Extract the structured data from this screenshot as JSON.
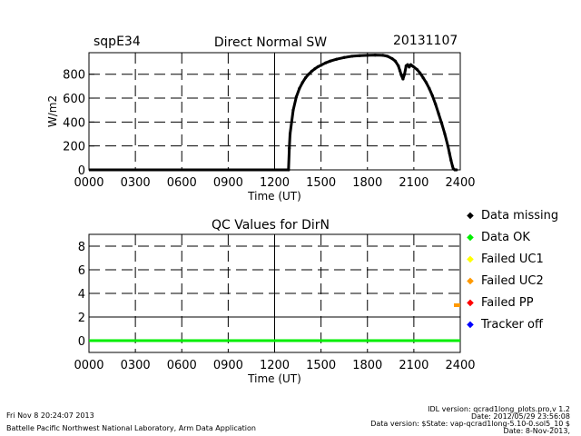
{
  "header": {
    "station": "sqpE34",
    "title": "Direct Normal SW",
    "date": "20131107"
  },
  "qc_title": "QC Values for DirN",
  "legend": [
    {
      "label": "Data missing",
      "color": "#000000"
    },
    {
      "label": "Data OK",
      "color": "#00ee00"
    },
    {
      "label": "Failed UC1",
      "color": "#ffff00"
    },
    {
      "label": "Failed UC2",
      "color": "#ff9900"
    },
    {
      "label": "Failed PP",
      "color": "#ff0000"
    },
    {
      "label": "Tracker off",
      "color": "#0000ff"
    }
  ],
  "footer": {
    "left_line1": "Fri Nov  8 20:24:07 2013",
    "left_line2": "Battelle Pacific Northwest National Laboratory, Arm Data Application",
    "right_line1": "IDL version: qcrad1long_plots.pro,v 1.2",
    "right_line2": "Date: 2012/05/29 23:56:08",
    "right_line3": "Data version: $State: vap-qcrad1long-5.10-0.sol5_10 $",
    "right_line4": "Date: 8-Nov-2013,"
  },
  "chart_data": [
    {
      "type": "line",
      "title": "Direct Normal SW",
      "xlabel": "Time (UT)",
      "ylabel": "W/m2",
      "xlim": [
        0,
        2400
      ],
      "ylim": [
        0,
        980
      ],
      "xticks": [
        "0000",
        "0300",
        "0600",
        "0900",
        "1200",
        "1500",
        "1800",
        "2100",
        "2400"
      ],
      "yticks": [
        "0",
        "200",
        "400",
        "600",
        "800"
      ],
      "grid": true,
      "series": [
        {
          "color": "#000000",
          "x": [
            0,
            90,
            1290,
            1295,
            1300,
            1320,
            1340,
            1360,
            1380,
            1400,
            1420,
            1440,
            1460,
            1480,
            1500,
            1530,
            1560,
            1600,
            1650,
            1700,
            1750,
            1800,
            1850,
            1900,
            1930,
            1960,
            1980,
            2000,
            2010,
            2020,
            2030,
            2040,
            2050,
            2060,
            2070,
            2080,
            2090,
            2100,
            2120,
            2140,
            2160,
            2180,
            2200,
            2220,
            2240,
            2260,
            2280,
            2300,
            2320,
            2330,
            2340,
            2350,
            2355,
            2365,
            2375
          ],
          "y": [
            0,
            0,
            0,
            180,
            300,
            500,
            610,
            680,
            730,
            770,
            800,
            825,
            845,
            862,
            875,
            895,
            910,
            925,
            940,
            950,
            955,
            958,
            960,
            958,
            950,
            930,
            910,
            870,
            830,
            790,
            760,
            800,
            870,
            880,
            860,
            880,
            870,
            860,
            840,
            810,
            770,
            730,
            680,
            620,
            550,
            470,
            390,
            300,
            200,
            140,
            80,
            30,
            10,
            0,
            0
          ]
        }
      ]
    },
    {
      "type": "line",
      "title": "QC Values for DirN",
      "xlabel": "Time (UT)",
      "ylabel": "",
      "xlim": [
        0,
        2400
      ],
      "ylim": [
        -1,
        9
      ],
      "xticks": [
        "0000",
        "0300",
        "0600",
        "0900",
        "1200",
        "1500",
        "1800",
        "2100",
        "2400"
      ],
      "yticks": [
        "0",
        "2",
        "4",
        "6",
        "8"
      ],
      "grid": true,
      "series": [
        {
          "color": "#00ee00",
          "x": [
            0,
            2400
          ],
          "y": [
            0,
            0
          ]
        }
      ],
      "markers": [
        {
          "x": 2400,
          "y": 3,
          "color": "#ff9900"
        }
      ]
    }
  ]
}
